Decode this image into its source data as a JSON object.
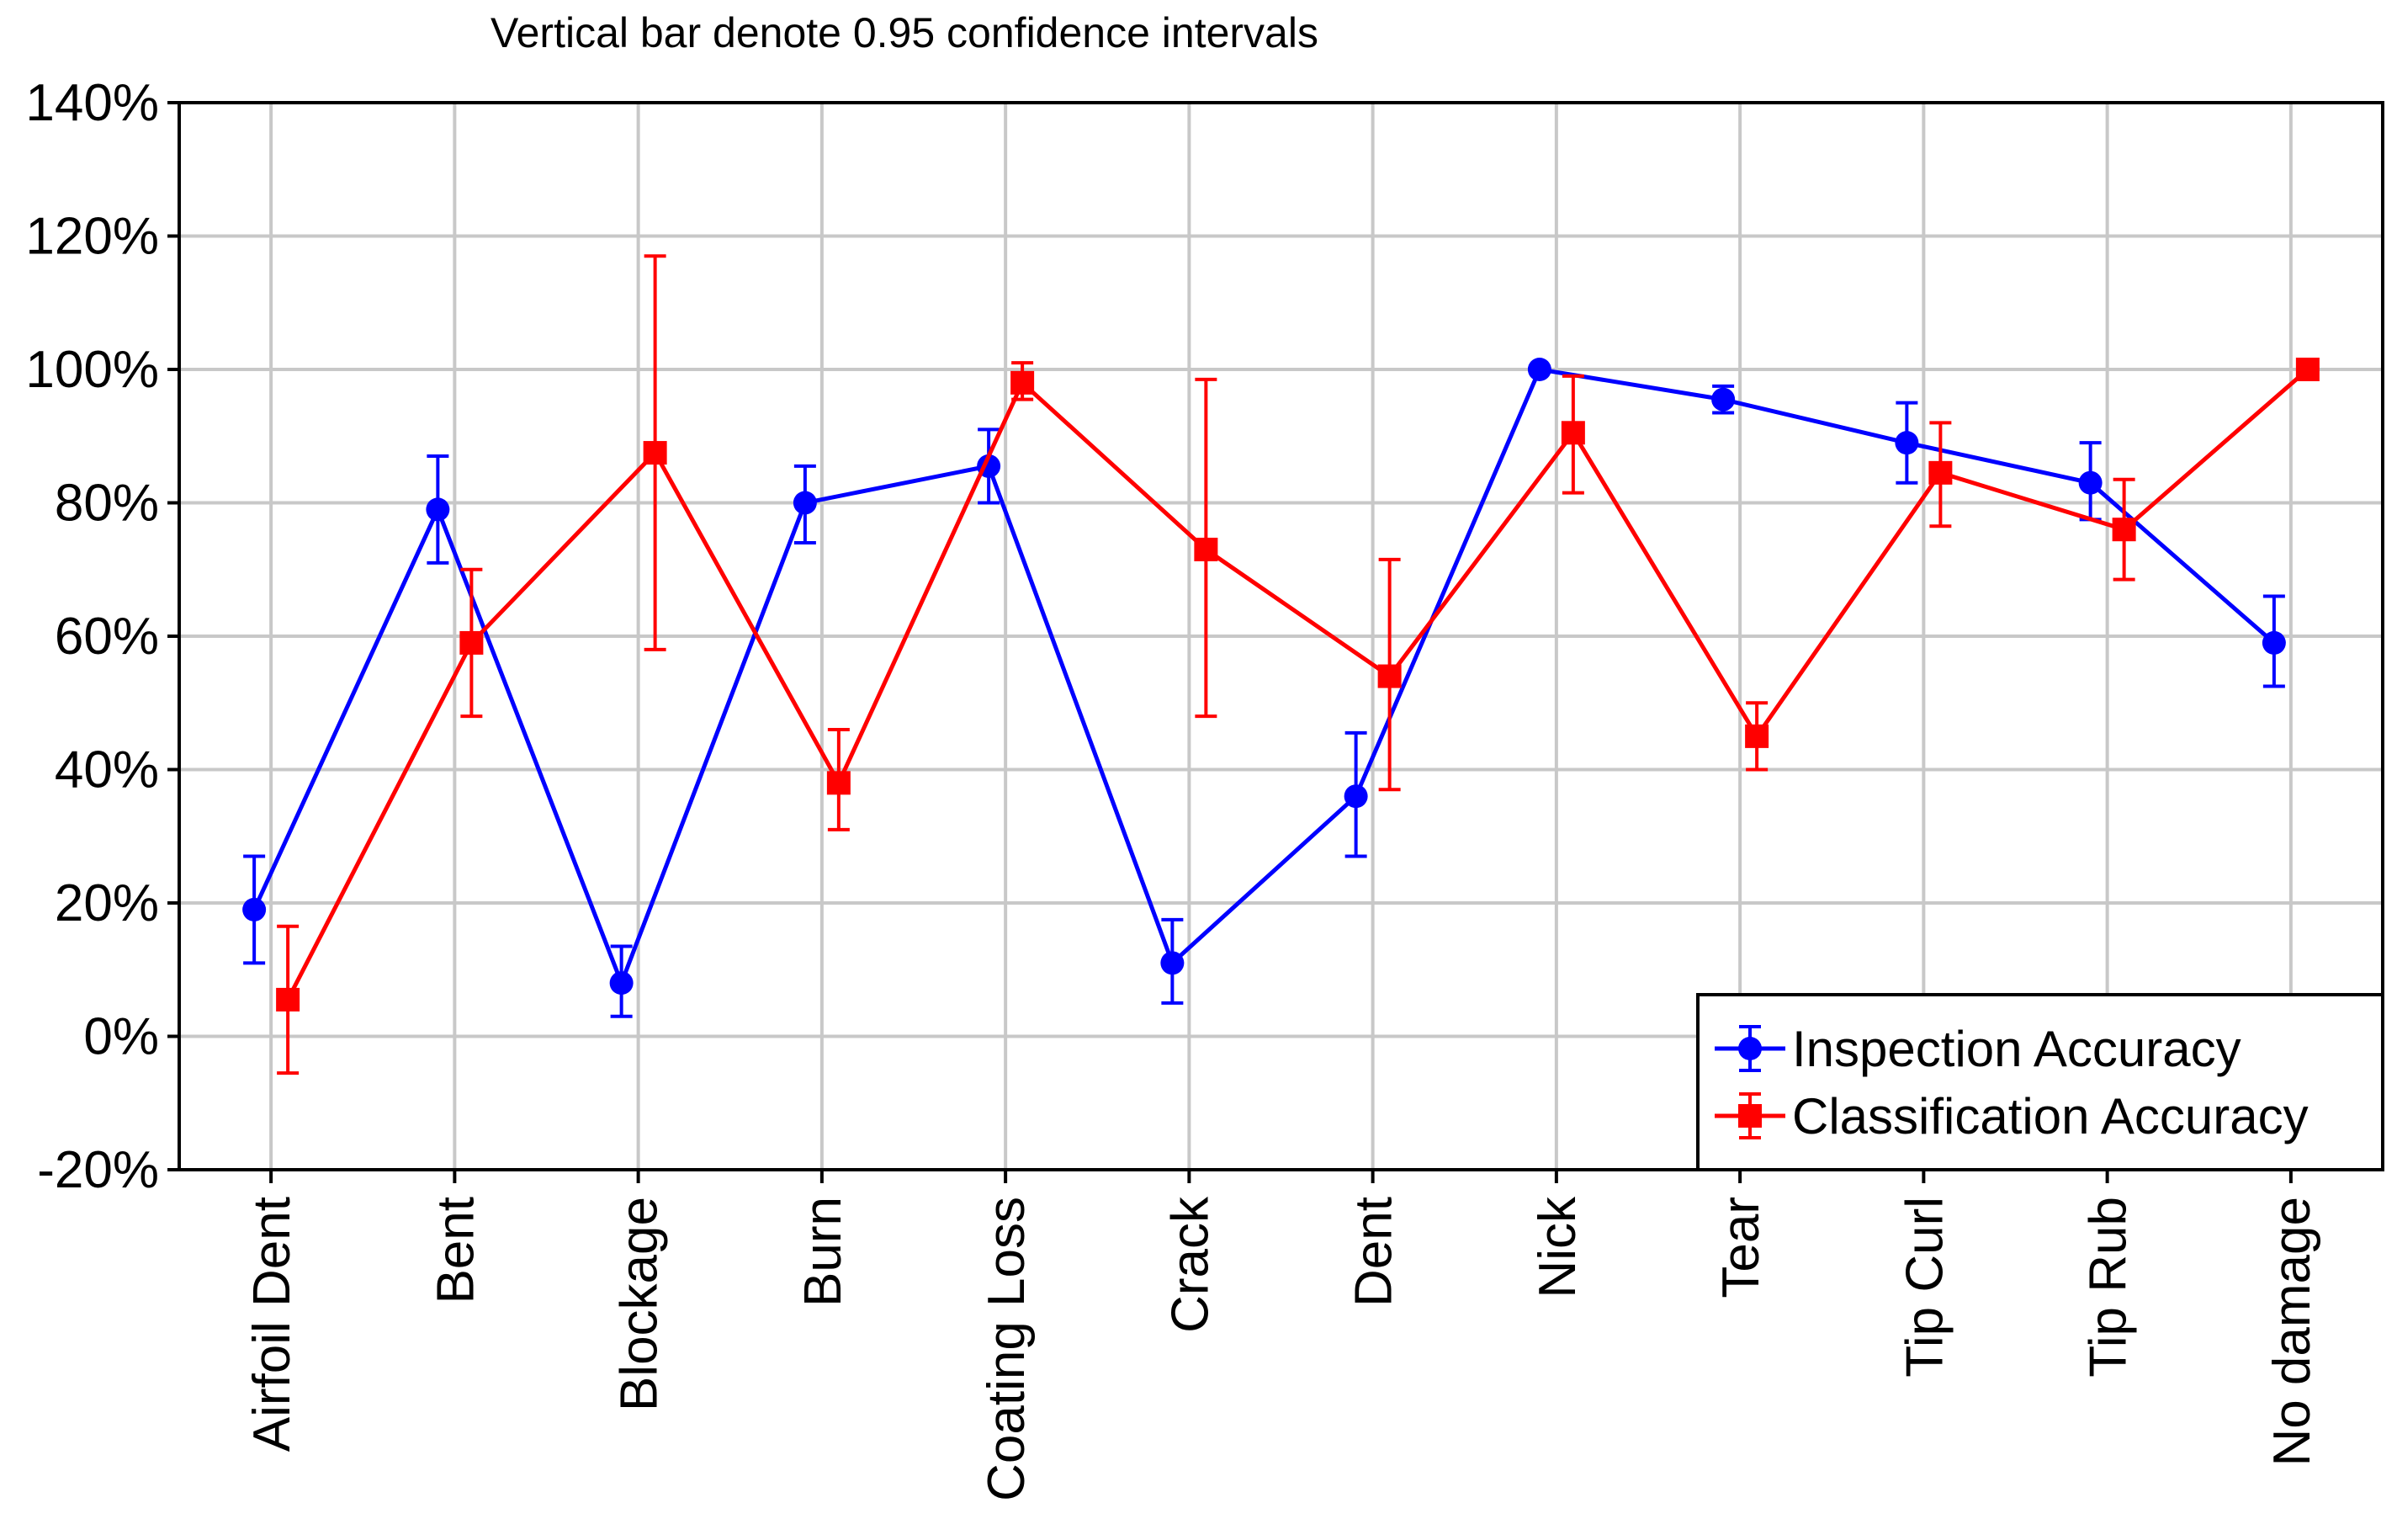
{
  "chart_data": {
    "type": "line",
    "title": "Vertical bar denote 0.95 confidence intervals",
    "xlabel": "",
    "ylabel": "",
    "ylim": [
      -20,
      140
    ],
    "yticks": [
      -20,
      0,
      20,
      40,
      60,
      80,
      100,
      120,
      140
    ],
    "ytick_labels": [
      "-20%",
      "0%",
      "20%",
      "40%",
      "60%",
      "80%",
      "100%",
      "120%",
      "140%"
    ],
    "grid": true,
    "legend_position": "bottom-right",
    "categories": [
      "Airfoil Dent",
      "Bent",
      "Blockage",
      "Burn",
      "Coating Loss",
      "Crack",
      "Dent",
      "Nick",
      "Tear",
      "Tip Curl",
      "Tip Rub",
      "No damage"
    ],
    "series": [
      {
        "name": "Inspection Accuracy",
        "color": "#0000ff",
        "marker": "circle",
        "values": [
          19,
          79,
          8,
          80,
          85.5,
          11,
          36,
          100,
          95.5,
          89,
          83,
          59
        ],
        "ci_low": [
          11,
          71,
          3,
          74,
          80,
          5,
          27,
          null,
          93.5,
          83,
          77.5,
          52.5
        ],
        "ci_high": [
          27,
          87,
          13.5,
          85.5,
          91,
          17.5,
          45.5,
          null,
          97.5,
          95,
          89,
          66
        ]
      },
      {
        "name": "Classification Accuracy",
        "color": "#ff0000",
        "marker": "square",
        "values": [
          5.5,
          59,
          87.5,
          38,
          98,
          73,
          54,
          90.5,
          45,
          84.5,
          76,
          100
        ],
        "ci_low": [
          -5.5,
          48,
          58,
          31,
          95.5,
          48,
          37,
          81.5,
          40,
          76.5,
          68.5,
          null
        ],
        "ci_high": [
          16.5,
          70,
          117,
          46,
          101,
          98.5,
          71.5,
          99,
          50,
          92,
          83.5,
          null
        ]
      }
    ]
  }
}
